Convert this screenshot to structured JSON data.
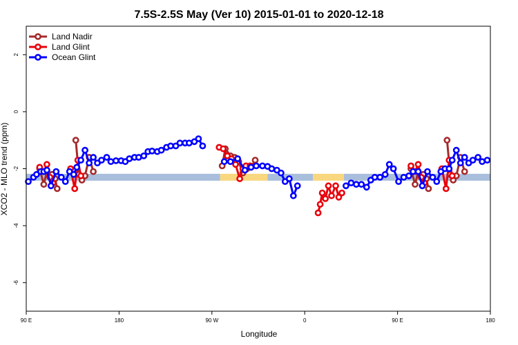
{
  "chart_data": {
    "type": "line",
    "title": "7.5S-2.5S May (Ver 10)   2015-01-01 to 2020-12-18",
    "xlabel": "Longitude",
    "ylabel": "XCO2 - MLO trend (ppm)",
    "xlim": [
      90,
      540
    ],
    "ylim": [
      -7,
      3
    ],
    "xticks": [
      {
        "value": 90,
        "label": "90 E"
      },
      {
        "value": 180,
        "label": "180"
      },
      {
        "value": 270,
        "label": "90 W"
      },
      {
        "value": 360,
        "label": "0"
      },
      {
        "value": 450,
        "label": "90 E"
      },
      {
        "value": 540,
        "label": "180"
      }
    ],
    "yticks": [
      {
        "value": -6,
        "label": "-6"
      },
      {
        "value": -4,
        "label": "-4"
      },
      {
        "value": -2,
        "label": "-2"
      },
      {
        "value": 0,
        "label": "0"
      },
      {
        "value": 2,
        "label": "2"
      }
    ],
    "grid": false,
    "legend": {
      "position": "top-left"
    },
    "band": {
      "y": -2.3,
      "segments": [
        {
          "from": 90,
          "to": 278,
          "color": "#a8bedc"
        },
        {
          "from": 278,
          "to": 324,
          "color": "#f9d77e"
        },
        {
          "from": 324,
          "to": 368,
          "color": "#a8bedc"
        },
        {
          "from": 368,
          "to": 398,
          "color": "#f9d77e"
        },
        {
          "from": 398,
          "to": 540,
          "color": "#a8bedc"
        }
      ]
    },
    "series": [
      {
        "name": "Land Nadir",
        "color": "#a52a2a",
        "segments": [
          [
            [
              103,
              -2.0
            ],
            [
              107,
              -2.55
            ],
            [
              110,
              -2.1
            ],
            [
              115,
              -2.2
            ],
            [
              118,
              -2.35
            ],
            [
              120,
              -2.7
            ]
          ],
          [
            [
              138,
              -1.0
            ],
            [
              141,
              -2.2
            ],
            [
              144,
              -2.4
            ],
            [
              147,
              -2.25
            ],
            [
              151,
              -1.6
            ],
            [
              155,
              -2.1
            ]
          ],
          [
            [
              280,
              -1.9
            ],
            [
              283,
              -1.3
            ],
            [
              288,
              -1.55
            ],
            [
              292,
              -1.6
            ],
            [
              296,
              -1.75
            ],
            [
              300,
              -2.15
            ],
            [
              304,
              -2.0
            ],
            [
              308,
              -1.95
            ],
            [
              312,
              -1.7
            ]
          ],
          [
            [
              463,
              -2.0
            ],
            [
              467,
              -2.55
            ],
            [
              470,
              -2.1
            ],
            [
              475,
              -2.2
            ],
            [
              478,
              -2.35
            ],
            [
              480,
              -2.7
            ]
          ],
          [
            [
              498,
              -1.0
            ],
            [
              501,
              -2.2
            ],
            [
              504,
              -2.4
            ],
            [
              507,
              -2.25
            ],
            [
              511,
              -1.6
            ],
            [
              515,
              -2.1
            ]
          ]
        ]
      },
      {
        "name": "Land Glint",
        "color": "#e8000b",
        "segments": [
          [
            [
              103,
              -1.95
            ],
            [
              107,
              -2.1
            ],
            [
              110,
              -1.85
            ],
            [
              113,
              -2.3
            ],
            [
              116,
              -2.5
            ]
          ],
          [
            [
              133,
              -2.0
            ],
            [
              137,
              -2.7
            ],
            [
              140,
              -1.7
            ],
            [
              143,
              -2.25
            ]
          ],
          [
            [
              277,
              -1.25
            ],
            [
              281,
              -1.3
            ],
            [
              285,
              -1.55
            ],
            [
              289,
              -1.65
            ],
            [
              293,
              -1.85
            ],
            [
              297,
              -2.35
            ],
            [
              300,
              -2.0
            ],
            [
              303,
              -1.9
            ],
            [
              307,
              -1.9
            ]
          ],
          [
            [
              373,
              -3.55
            ],
            [
              375,
              -3.25
            ],
            [
              377,
              -2.85
            ],
            [
              380,
              -3.05
            ],
            [
              383,
              -2.6
            ],
            [
              386,
              -2.95
            ],
            [
              390,
              -2.6
            ],
            [
              393,
              -3.0
            ],
            [
              396,
              -2.85
            ]
          ],
          [
            [
              463,
              -1.9
            ],
            [
              467,
              -2.1
            ],
            [
              470,
              -1.85
            ],
            [
              473,
              -2.3
            ],
            [
              476,
              -2.5
            ]
          ],
          [
            [
              493,
              -2.0
            ],
            [
              497,
              -2.7
            ],
            [
              500,
              -1.7
            ],
            [
              503,
              -2.25
            ]
          ]
        ]
      },
      {
        "name": "Ocean Glint",
        "color": "#0000ff",
        "segments": [
          [
            [
              92,
              -2.45
            ],
            [
              97,
              -2.3
            ],
            [
              100,
              -2.2
            ],
            [
              104,
              -2.1
            ],
            [
              107,
              -2.1
            ],
            [
              110,
              -2.05
            ],
            [
              114,
              -2.6
            ],
            [
              119,
              -2.1
            ],
            [
              124,
              -2.3
            ],
            [
              128,
              -2.45
            ],
            [
              132,
              -2.1
            ],
            [
              136,
              -2.2
            ],
            [
              139,
              -1.95
            ],
            [
              143,
              -1.7
            ],
            [
              147,
              -1.35
            ],
            [
              151,
              -1.8
            ],
            [
              155,
              -1.6
            ],
            [
              159,
              -1.8
            ],
            [
              163,
              -1.7
            ],
            [
              168,
              -1.6
            ],
            [
              172,
              -1.75
            ],
            [
              177,
              -1.72
            ],
            [
              182,
              -1.72
            ],
            [
              186,
              -1.75
            ],
            [
              190,
              -1.65
            ],
            [
              195,
              -1.6
            ],
            [
              199,
              -1.6
            ],
            [
              204,
              -1.55
            ],
            [
              208,
              -1.4
            ],
            [
              212,
              -1.38
            ],
            [
              217,
              -1.4
            ],
            [
              221,
              -1.35
            ],
            [
              226,
              -1.25
            ],
            [
              230,
              -1.2
            ],
            [
              235,
              -1.2
            ],
            [
              239,
              -1.1
            ],
            [
              244,
              -1.1
            ],
            [
              248,
              -1.1
            ],
            [
              253,
              -1.05
            ],
            [
              257,
              -0.95
            ],
            [
              261,
              -1.2
            ]
          ],
          [
            [
              282,
              -1.75
            ],
            [
              288,
              -1.75
            ],
            [
              295,
              -1.65
            ],
            [
              302,
              -2.05
            ],
            [
              308,
              -1.95
            ],
            [
              313,
              -1.9
            ],
            [
              319,
              -1.9
            ],
            [
              324,
              -1.92
            ],
            [
              328,
              -2.0
            ],
            [
              333,
              -2.05
            ],
            [
              337,
              -2.15
            ],
            [
              341,
              -2.45
            ],
            [
              345,
              -2.35
            ],
            [
              349,
              -2.95
            ],
            [
              353,
              -2.6
            ]
          ],
          [
            [
              400,
              -2.6
            ],
            [
              405,
              -2.5
            ],
            [
              410,
              -2.55
            ],
            [
              415,
              -2.55
            ],
            [
              420,
              -2.65
            ],
            [
              424,
              -2.4
            ],
            [
              428,
              -2.3
            ],
            [
              433,
              -2.3
            ],
            [
              438,
              -2.2
            ],
            [
              442,
              -1.85
            ],
            [
              446,
              -2.0
            ],
            [
              451,
              -2.45
            ],
            [
              456,
              -2.3
            ],
            [
              461,
              -2.25
            ],
            [
              465,
              -2.1
            ],
            [
              470,
              -2.1
            ],
            [
              474,
              -2.6
            ],
            [
              479,
              -2.1
            ],
            [
              484,
              -2.3
            ],
            [
              488,
              -2.45
            ],
            [
              492,
              -2.1
            ],
            [
              496,
              -2.0
            ],
            [
              500,
              -2.0
            ],
            [
              503,
              -1.7
            ],
            [
              507,
              -1.35
            ],
            [
              511,
              -1.8
            ],
            [
              515,
              -1.6
            ],
            [
              519,
              -1.8
            ],
            [
              523,
              -1.7
            ],
            [
              528,
              -1.6
            ],
            [
              532,
              -1.75
            ],
            [
              537,
              -1.7
            ]
          ]
        ]
      }
    ]
  }
}
